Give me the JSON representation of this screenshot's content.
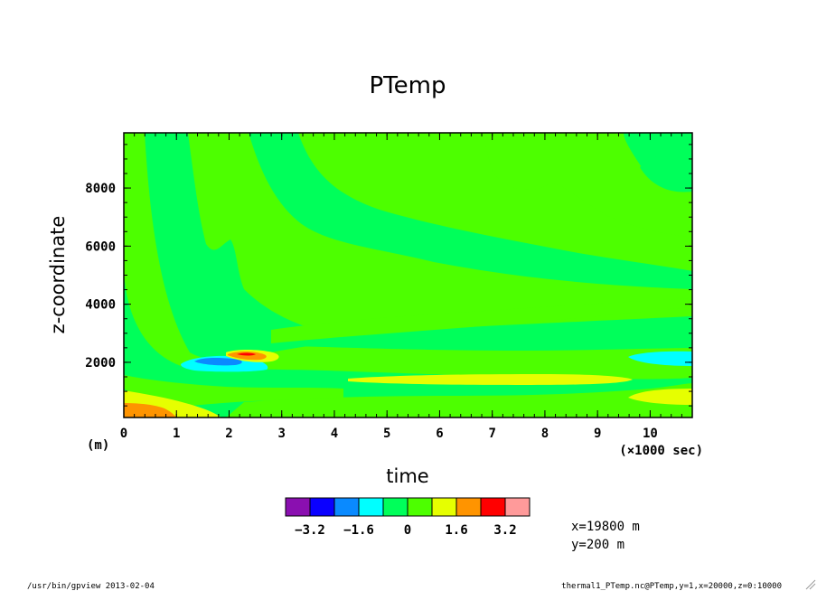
{
  "chart_data": {
    "type": "contour",
    "title": "PTemp",
    "xlabel": "time",
    "ylabel": "z-coordinate",
    "x_unit": "(×1000 sec)",
    "y_unit": "(m)",
    "xlim": [
      0,
      10.8
    ],
    "ylim": [
      100,
      9900
    ],
    "xticks": [
      "0",
      "1",
      "2",
      "3",
      "4",
      "5",
      "6",
      "7",
      "8",
      "9",
      "10"
    ],
    "yticks": [
      "2000",
      "4000",
      "6000",
      "8000"
    ],
    "contour_levels": [
      -4.0,
      -3.2,
      -2.4,
      -1.6,
      -0.8,
      0,
      0.8,
      1.6,
      2.4,
      3.2,
      4.0
    ],
    "colorbar_labels": [
      "-3.2",
      "-1.6",
      "0",
      "1.6",
      "3.2"
    ],
    "colorbar_colors": [
      "#8a0fb0",
      "#0a00ff",
      "#0a8aff",
      "#00ffff",
      "#00ff5a",
      "#4dff00",
      "#e6ff00",
      "#ff9400",
      "#ff0000",
      "#ff9a9a"
    ],
    "regions": [
      {
        "level": "0 to 0.8",
        "color": "#4dff00"
      },
      {
        "level": "-0.8 to 0",
        "color": "#00ff5a"
      },
      {
        "level": "-1.6 to -0.8",
        "color": "#00ffff"
      },
      {
        "level": "-2.4 to -1.6",
        "color": "#0a8aff"
      },
      {
        "level": "0.8 to 1.6",
        "color": "#e6ff00"
      },
      {
        "level": "1.6 to 2.4",
        "color": "#ff9400"
      },
      {
        "level": "2.4 to 3.2",
        "color": "#ff0000"
      }
    ]
  },
  "info": {
    "x_cut": "x=19800 m",
    "y_cut": "y=200 m"
  },
  "footer": {
    "left": "/usr/bin/gpview  2013-02-04",
    "right": "thermal1_PTemp.nc@PTemp,y=1,x=20000,z=0:10000"
  }
}
